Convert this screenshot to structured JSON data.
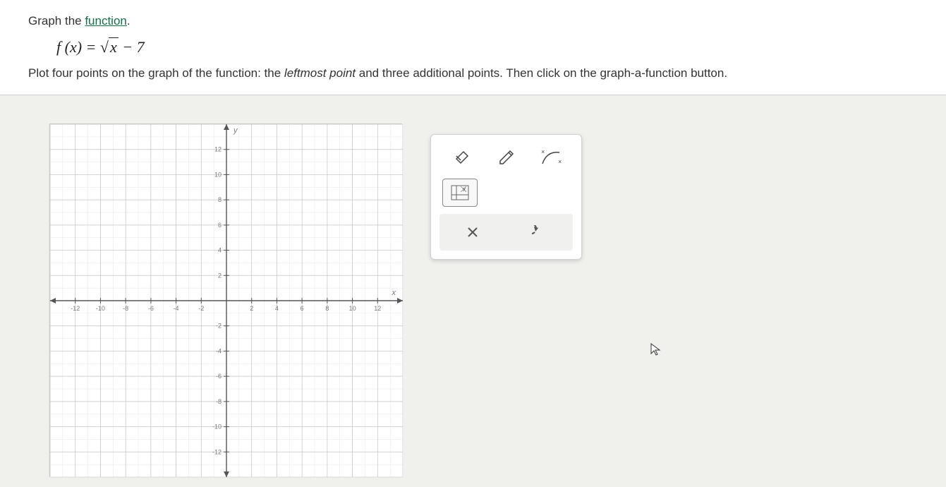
{
  "question": {
    "prefix": "Graph the ",
    "link_word": "function",
    "suffix": ".",
    "equation_lhs": "f (x)",
    "equation_equals": " = ",
    "equation_radicand": "x",
    "equation_tail": " − 7",
    "instructions_p1": "Plot four points on the graph of the function: the ",
    "instructions_italic": "leftmost point",
    "instructions_p2": " and three additional points. Then click on the graph-a-function button."
  },
  "graph": {
    "xmin": -14,
    "xmax": 14,
    "ymin": -14,
    "ymax": 14,
    "major_step": 2,
    "labeled_ticks": [
      -12,
      -10,
      -8,
      -6,
      -4,
      -2,
      2,
      4,
      6,
      8,
      10,
      12
    ],
    "axis_label_x": "x",
    "axis_label_y": "y",
    "bg_color": "#ffffff",
    "minor_grid_color": "#e6e6e6",
    "major_grid_color": "#c4c4c4",
    "axis_color": "#555555",
    "tick_font_size": 9,
    "tick_color": "#777777"
  },
  "tools": {
    "eraser": "eraser-icon",
    "pencil": "pencil-icon",
    "curve": "curve-icon",
    "graph_fn": "graph-function-icon",
    "clear": "clear-icon",
    "undo": "undo-icon"
  },
  "colors": {
    "panel_bg": "#ffffff",
    "page_bg": "#f0f0ed",
    "link": "#1a6b4a",
    "text": "#333333"
  }
}
